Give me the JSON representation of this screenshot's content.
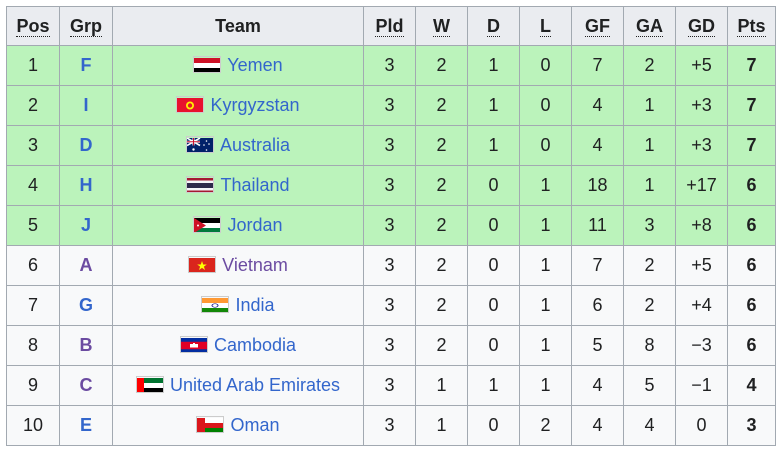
{
  "table": {
    "headers": {
      "pos": "Pos",
      "grp": "Grp",
      "team": "Team",
      "pld": "Pld",
      "w": "W",
      "d": "D",
      "l": "L",
      "gf": "GF",
      "ga": "GA",
      "gd": "GD",
      "pts": "Pts"
    },
    "colors": {
      "qualified_row": "#bbf3bb",
      "normal_row": "#f8f9fa",
      "header": "#eaecf0",
      "link": "#3366cc",
      "visited_link": "#6b4ba1"
    },
    "rows": [
      {
        "pos": "1",
        "grp": "F",
        "team": "Yemen",
        "flag": "yemen-flag-icon",
        "pld": "3",
        "w": "2",
        "d": "1",
        "l": "0",
        "gf": "7",
        "ga": "2",
        "gd": "+5",
        "pts": "7",
        "qualified": true
      },
      {
        "pos": "2",
        "grp": "I",
        "team": "Kyrgyzstan",
        "flag": "kyrgyzstan-flag-icon",
        "pld": "3",
        "w": "2",
        "d": "1",
        "l": "0",
        "gf": "4",
        "ga": "1",
        "gd": "+3",
        "pts": "7",
        "qualified": true
      },
      {
        "pos": "3",
        "grp": "D",
        "team": "Australia",
        "flag": "australia-flag-icon",
        "pld": "3",
        "w": "2",
        "d": "1",
        "l": "0",
        "gf": "4",
        "ga": "1",
        "gd": "+3",
        "pts": "7",
        "qualified": true
      },
      {
        "pos": "4",
        "grp": "H",
        "team": "Thailand",
        "flag": "thailand-flag-icon",
        "pld": "3",
        "w": "2",
        "d": "0",
        "l": "1",
        "gf": "18",
        "ga": "1",
        "gd": "+17",
        "pts": "6",
        "qualified": true
      },
      {
        "pos": "5",
        "grp": "J",
        "team": "Jordan",
        "flag": "jordan-flag-icon",
        "pld": "3",
        "w": "2",
        "d": "0",
        "l": "1",
        "gf": "11",
        "ga": "3",
        "gd": "+8",
        "pts": "6",
        "qualified": true
      },
      {
        "pos": "6",
        "grp": "A",
        "team": "Vietnam",
        "flag": "vietnam-flag-icon",
        "pld": "3",
        "w": "2",
        "d": "0",
        "l": "1",
        "gf": "7",
        "ga": "2",
        "gd": "+5",
        "pts": "6",
        "qualified": false
      },
      {
        "pos": "7",
        "grp": "G",
        "team": "India",
        "flag": "india-flag-icon",
        "pld": "3",
        "w": "2",
        "d": "0",
        "l": "1",
        "gf": "6",
        "ga": "2",
        "gd": "+4",
        "pts": "6",
        "qualified": false
      },
      {
        "pos": "8",
        "grp": "B",
        "team": "Cambodia",
        "flag": "cambodia-flag-icon",
        "pld": "3",
        "w": "2",
        "d": "0",
        "l": "1",
        "gf": "5",
        "ga": "8",
        "gd": "−3",
        "pts": "6",
        "qualified": false
      },
      {
        "pos": "9",
        "grp": "C",
        "team": "United Arab Emirates",
        "flag": "uae-flag-icon",
        "pld": "3",
        "w": "1",
        "d": "1",
        "l": "1",
        "gf": "4",
        "ga": "5",
        "gd": "−1",
        "pts": "4",
        "qualified": false
      },
      {
        "pos": "10",
        "grp": "E",
        "team": "Oman",
        "flag": "oman-flag-icon",
        "pld": "3",
        "w": "1",
        "d": "0",
        "l": "2",
        "gf": "4",
        "ga": "4",
        "gd": "0",
        "pts": "3",
        "qualified": false
      }
    ]
  }
}
